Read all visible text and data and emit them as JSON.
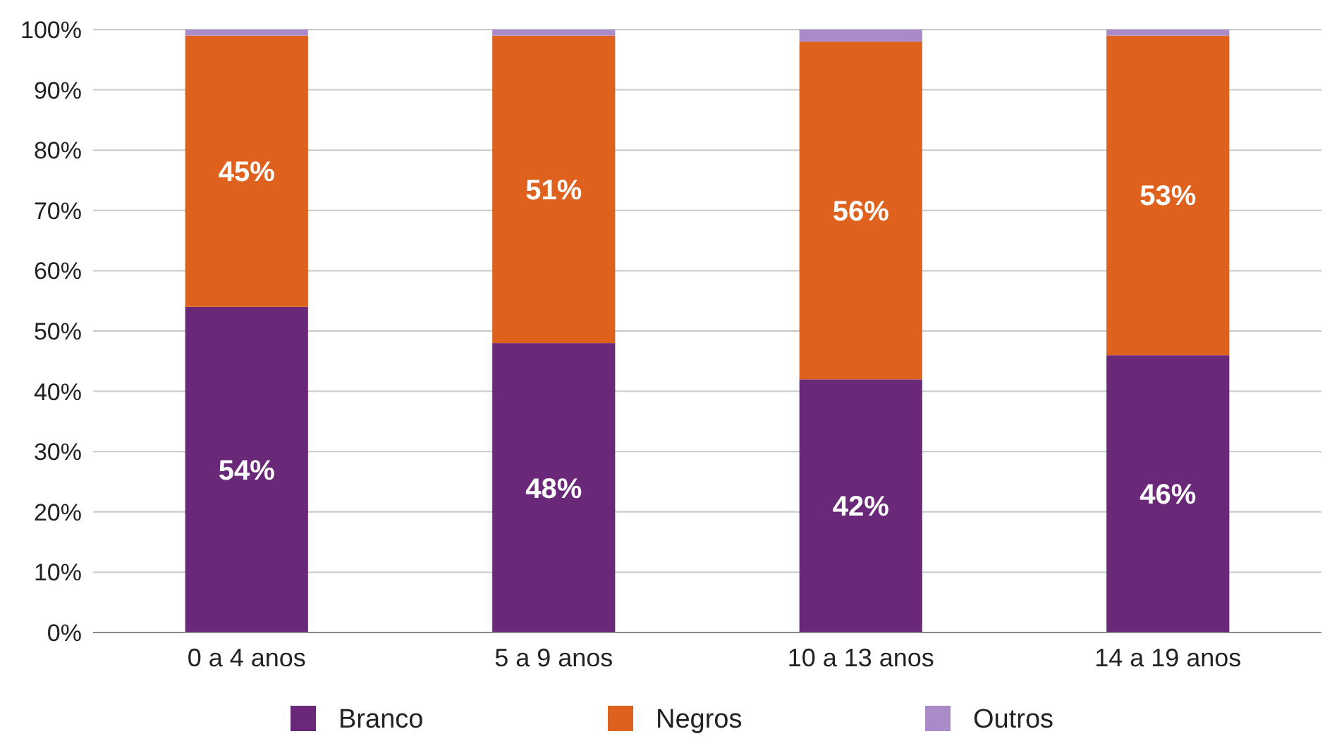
{
  "chart_data": {
    "type": "bar",
    "stacked": true,
    "categories": [
      "0 a 4 anos",
      "5 a 9 anos",
      "10 a 13 anos",
      "14 a 19 anos"
    ],
    "series": [
      {
        "name": "Branco",
        "color": "#6a2878",
        "values": [
          54,
          48,
          42,
          46
        ],
        "value_labels": [
          "54%",
          "48%",
          "42%",
          "46%"
        ]
      },
      {
        "name": "Negros",
        "color": "#de621e",
        "values": [
          45,
          51,
          56,
          53
        ],
        "value_labels": [
          "45%",
          "51%",
          "56%",
          "53%"
        ]
      },
      {
        "name": "Outros",
        "color": "#a98bc7",
        "values": [
          1,
          1,
          2,
          1
        ]
      }
    ],
    "ylim": [
      0,
      100
    ],
    "yticks": [
      {
        "value": 0,
        "label": "0%"
      },
      {
        "value": 10,
        "label": "10%"
      },
      {
        "value": 20,
        "label": "20%"
      },
      {
        "value": 30,
        "label": "30%"
      },
      {
        "value": 40,
        "label": "40%"
      },
      {
        "value": 50,
        "label": "50%"
      },
      {
        "value": 60,
        "label": "60%"
      },
      {
        "value": 70,
        "label": "70%"
      },
      {
        "value": 80,
        "label": "80%"
      },
      {
        "value": 90,
        "label": "90%"
      },
      {
        "value": 100,
        "label": "100%"
      }
    ],
    "grid": "y",
    "legend": "bottom"
  }
}
